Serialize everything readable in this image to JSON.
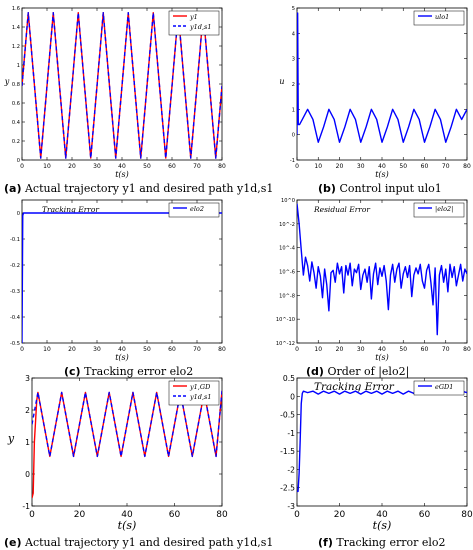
{
  "captions": [
    {
      "letter": "(a)",
      "text": "Actual trajectory y1 and desired path y1d,s1"
    },
    {
      "letter": "(b)",
      "text": "Control input ulo1"
    },
    {
      "letter": "(c)",
      "text": "Tracking error elo2"
    },
    {
      "letter": "(d)",
      "text": "Order of |elo2|"
    },
    {
      "letter": "(e)",
      "text": "Actual trajectory y1 and desired path y1d,s1"
    },
    {
      "letter": "(f)",
      "text": "Tracking error elo2"
    }
  ],
  "chart_data": [
    {
      "id": "a",
      "type": "line",
      "xlabel": "t(s)",
      "ylabel": "y",
      "xlim": [
        0,
        80
      ],
      "ylim": [
        0,
        1.6
      ],
      "xticks": [
        0,
        10,
        20,
        30,
        40,
        50,
        60,
        70,
        80
      ],
      "yticks": [
        0,
        0.2,
        0.4,
        0.6,
        0.8,
        1,
        1.2,
        1.4,
        1.6
      ],
      "legend_position": "top-right",
      "series": [
        {
          "name": "y1",
          "color": "#ff0000",
          "style": "solid",
          "x": [
            0,
            2.5,
            5,
            7.5,
            10,
            12.5,
            15,
            17.5,
            20,
            22.5,
            25,
            27.5,
            30,
            32.5,
            35,
            37.5,
            40,
            42.5,
            45,
            47.5,
            50,
            52.5,
            55,
            57.5,
            60,
            62.5,
            65,
            67.5,
            70,
            72.5,
            75,
            77.5,
            80
          ],
          "y": [
            0.78,
            1.55,
            0.78,
            0.02,
            0.78,
            1.55,
            0.78,
            0.02,
            0.78,
            1.55,
            0.78,
            0.02,
            0.78,
            1.55,
            0.78,
            0.02,
            0.78,
            1.55,
            0.78,
            0.02,
            0.78,
            1.55,
            0.78,
            0.02,
            0.78,
            1.55,
            0.78,
            0.02,
            0.78,
            1.55,
            0.78,
            0.02,
            0.78
          ]
        },
        {
          "name": "y1d,s1",
          "color": "#0000ff",
          "style": "dashed",
          "x": [
            0,
            2.5,
            5,
            7.5,
            10,
            12.5,
            15,
            17.5,
            20,
            22.5,
            25,
            27.5,
            30,
            32.5,
            35,
            37.5,
            40,
            42.5,
            45,
            47.5,
            50,
            52.5,
            55,
            57.5,
            60,
            62.5,
            65,
            67.5,
            70,
            72.5,
            75,
            77.5,
            80
          ],
          "y": [
            0.78,
            1.55,
            0.78,
            0.02,
            0.78,
            1.55,
            0.78,
            0.02,
            0.78,
            1.55,
            0.78,
            0.02,
            0.78,
            1.55,
            0.78,
            0.02,
            0.78,
            1.55,
            0.78,
            0.02,
            0.78,
            1.55,
            0.78,
            0.02,
            0.78,
            1.55,
            0.78,
            0.02,
            0.78,
            1.55,
            0.78,
            0.02,
            0.78
          ]
        }
      ]
    },
    {
      "id": "b",
      "type": "line",
      "xlabel": "t(s)",
      "ylabel": "u",
      "xlim": [
        0,
        80
      ],
      "ylim": [
        -1,
        5
      ],
      "xticks": [
        0,
        10,
        20,
        30,
        40,
        50,
        60,
        70,
        80
      ],
      "yticks": [
        -1,
        0,
        1,
        2,
        3,
        4,
        5
      ],
      "legend_position": "top-right",
      "series": [
        {
          "name": "ulo1",
          "color": "#0000ff",
          "style": "solid",
          "x": [
            0,
            0.3,
            0.6,
            1.2,
            2.5,
            5,
            7.5,
            10,
            12.5,
            15,
            17.5,
            20,
            22.5,
            25,
            27.5,
            30,
            32.5,
            35,
            37.5,
            40,
            42.5,
            45,
            47.5,
            50,
            52.5,
            55,
            57.5,
            60,
            62.5,
            65,
            67.5,
            70,
            72.5,
            75,
            77.5,
            80
          ],
          "y": [
            0,
            4.8,
            0.4,
            0.4,
            0.6,
            1.0,
            0.6,
            -0.3,
            0.3,
            1.0,
            0.6,
            -0.3,
            0.3,
            1.0,
            0.6,
            -0.3,
            0.3,
            1.0,
            0.6,
            -0.3,
            0.3,
            1.0,
            0.6,
            -0.3,
            0.3,
            1.0,
            0.6,
            -0.3,
            0.3,
            1.0,
            0.6,
            -0.3,
            0.3,
            1.0,
            0.6,
            1.0
          ]
        }
      ]
    },
    {
      "id": "c",
      "type": "line",
      "xlabel": "t(s)",
      "ylabel": "",
      "xlim": [
        0,
        80
      ],
      "ylim": [
        -0.5,
        0.05
      ],
      "xticks": [
        0,
        10,
        20,
        30,
        40,
        50,
        60,
        70,
        80
      ],
      "yticks": [
        -0.5,
        -0.4,
        -0.3,
        -0.2,
        -0.1,
        0
      ],
      "annotation": "Tracking Error",
      "legend_position": "top-right",
      "series": [
        {
          "name": "elo2",
          "color": "#0000ff",
          "style": "solid",
          "x": [
            0,
            0.3,
            0.6,
            80
          ],
          "y": [
            -0.5,
            -0.01,
            0,
            0
          ]
        }
      ]
    },
    {
      "id": "d",
      "type": "line",
      "xlabel": "t(s)",
      "ylabel": "",
      "xlim": [
        0,
        80
      ],
      "ylim": [
        -12,
        0
      ],
      "log_scale_y": true,
      "xticks": [
        0,
        10,
        20,
        30,
        40,
        50,
        60,
        70,
        80
      ],
      "yticks": [
        0,
        -2,
        -4,
        -6,
        -8,
        -10,
        -12
      ],
      "ytick_labels": [
        "10^0",
        "10^-2",
        "10^-4",
        "10^-6",
        "10^-8",
        "10^-10",
        "10^-12"
      ],
      "annotation": "Residual Error",
      "legend_position": "top-right",
      "series": [
        {
          "name": "|elo2|",
          "color": "#0000ff",
          "style": "solid",
          "x": [
            0,
            1,
            2,
            3,
            4,
            5,
            6,
            7,
            8,
            9,
            10,
            11,
            12,
            13,
            14,
            15,
            16,
            17,
            18,
            19,
            20,
            21,
            22,
            23,
            24,
            25,
            26,
            27,
            28,
            29,
            30,
            31,
            32,
            33,
            34,
            35,
            36,
            37,
            38,
            39,
            40,
            41,
            42,
            43,
            44,
            45,
            46,
            47,
            48,
            49,
            50,
            51,
            52,
            53,
            54,
            55,
            56,
            57,
            58,
            59,
            60,
            61,
            62,
            63,
            64,
            65,
            66,
            67,
            68,
            69,
            70,
            71,
            72,
            73,
            74,
            75,
            76,
            77,
            78,
            79,
            80
          ],
          "y": [
            -0.3,
            -2,
            -4.2,
            -6.3,
            -4.8,
            -5.5,
            -6.8,
            -5.2,
            -6.1,
            -7.4,
            -5.6,
            -6.4,
            -8.2,
            -5.8,
            -7.1,
            -9.3,
            -6.1,
            -5.9,
            -6.9,
            -5.3,
            -6.2,
            -5.6,
            -7.8,
            -5.5,
            -6.3,
            -5.3,
            -7.2,
            -5.8,
            -6.1,
            -5.4,
            -7.5,
            -6.3,
            -5.8,
            -6.9,
            -5.6,
            -8.3,
            -6.2,
            -5.3,
            -7.1,
            -5.7,
            -6.4,
            -5.5,
            -6.8,
            -9.2,
            -6.3,
            -5.4,
            -6.9,
            -5.8,
            -5.3,
            -7.4,
            -6.2,
            -5.6,
            -6.5,
            -5.5,
            -8.1,
            -6.3,
            -5.7,
            -6.2,
            -5.4,
            -6.8,
            -7.4,
            -5.9,
            -5.4,
            -6.9,
            -8.8,
            -5.7,
            -11.3,
            -6.3,
            -5.5,
            -6.9,
            -5.8,
            -7.7,
            -5.4,
            -6.5,
            -5.6,
            -7.2,
            -6.3,
            -5.4,
            -6.8,
            -5.8,
            -6.2
          ]
        }
      ]
    },
    {
      "id": "e",
      "type": "line",
      "xlabel": "t(s)",
      "ylabel": "y",
      "xlim": [
        0,
        80
      ],
      "ylim": [
        -1,
        3
      ],
      "xticks": [
        0,
        20,
        40,
        60,
        80
      ],
      "yticks": [
        -1,
        0,
        1,
        2,
        3
      ],
      "legend_position": "top-right",
      "series": [
        {
          "name": "y1,GD",
          "color": "#ff0000",
          "style": "solid",
          "x": [
            0,
            0.5,
            1,
            2,
            2.5,
            5,
            7.5,
            10,
            12.5,
            15,
            17.5,
            20,
            22.5,
            25,
            27.5,
            30,
            32.5,
            35,
            37.5,
            40,
            42.5,
            45,
            47.5,
            50,
            52.5,
            55,
            57.5,
            60,
            62.5,
            65,
            67.5,
            70,
            72.5,
            75,
            77.5,
            80
          ],
          "y": [
            -0.75,
            -0.6,
            1.0,
            2.3,
            2.55,
            1.55,
            0.55,
            1.55,
            2.55,
            1.55,
            0.55,
            1.55,
            2.55,
            1.55,
            0.55,
            1.55,
            2.55,
            1.55,
            0.55,
            1.55,
            2.55,
            1.55,
            0.55,
            1.55,
            2.55,
            1.55,
            0.55,
            1.55,
            2.55,
            1.55,
            0.55,
            1.55,
            2.55,
            1.55,
            0.55,
            2.6
          ]
        },
        {
          "name": "y1d,s1",
          "color": "#0000ff",
          "style": "dashed",
          "x": [
            0,
            2.5,
            5,
            7.5,
            10,
            12.5,
            15,
            17.5,
            20,
            22.5,
            25,
            27.5,
            30,
            32.5,
            35,
            37.5,
            40,
            42.5,
            45,
            47.5,
            50,
            52.5,
            55,
            57.5,
            60,
            62.5,
            65,
            67.5,
            70,
            72.5,
            75,
            77.5,
            80
          ],
          "y": [
            1.55,
            2.55,
            1.55,
            0.55,
            1.55,
            2.55,
            1.55,
            0.55,
            1.55,
            2.55,
            1.55,
            0.55,
            1.55,
            2.55,
            1.55,
            0.55,
            1.55,
            2.55,
            1.55,
            0.55,
            1.55,
            2.55,
            1.55,
            0.55,
            1.55,
            2.55,
            1.55,
            0.55,
            1.55,
            2.55,
            1.55,
            0.55,
            2.6
          ]
        }
      ]
    },
    {
      "id": "f",
      "type": "line",
      "xlabel": "t(s)",
      "ylabel": "",
      "xlim": [
        0,
        80
      ],
      "ylim": [
        -3,
        0.5
      ],
      "xticks": [
        0,
        20,
        40,
        60,
        80
      ],
      "yticks": [
        -3,
        -2.5,
        -2,
        -1.5,
        -1,
        -0.5,
        0,
        0.5
      ],
      "annotation": "Tracking Error",
      "legend_position": "top-right",
      "series": [
        {
          "name": "eGD1",
          "color": "#0000ff",
          "style": "solid",
          "x": [
            0,
            0.5,
            1,
            1.5,
            2,
            2.5,
            3,
            4,
            5,
            7.5,
            10,
            12.5,
            15,
            17.5,
            20,
            22.5,
            25,
            27.5,
            30,
            32.5,
            35,
            37.5,
            40,
            42.5,
            45,
            47.5,
            50,
            52.5,
            55,
            57.5,
            60,
            62.5,
            65,
            67.5,
            70,
            72.5,
            75,
            77.5,
            80
          ],
          "y": [
            -2.6,
            -2.6,
            -2.1,
            -1.2,
            -0.2,
            0.08,
            0.14,
            0.12,
            0.1,
            0.14,
            0.06,
            0.14,
            0.08,
            0.14,
            0.06,
            0.14,
            0.08,
            0.14,
            0.06,
            0.14,
            0.08,
            0.14,
            0.06,
            0.14,
            0.08,
            0.14,
            0.06,
            0.14,
            0.08,
            0.14,
            0.06,
            0.14,
            0.08,
            0.14,
            0.06,
            0.14,
            0.08,
            0.14,
            0.1
          ]
        }
      ]
    }
  ]
}
